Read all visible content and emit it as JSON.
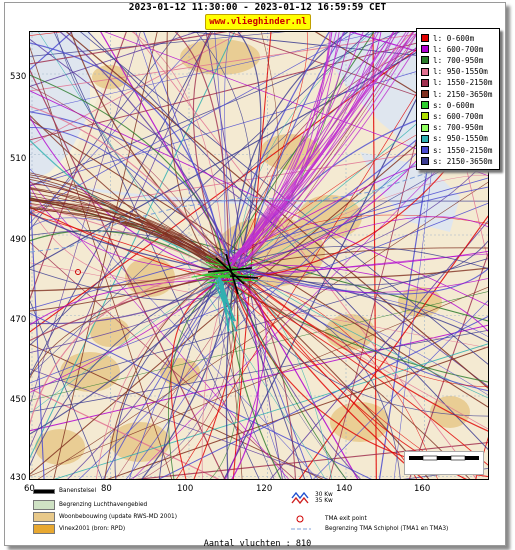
{
  "title": "2023-01-12 11:30:00 - 2023-01-12 16:59:59 CET",
  "website": "www.vlieghinder.nl",
  "axes": {
    "y_ticks": [
      "530",
      "510",
      "490",
      "470",
      "450",
      "430"
    ],
    "x_ticks": [
      "60",
      "80",
      "100",
      "120",
      "140",
      "160"
    ]
  },
  "legend": [
    {
      "label": "l: 0-600m",
      "color": "#e00000"
    },
    {
      "label": "l: 600-700m",
      "color": "#b000d0"
    },
    {
      "label": "l: 700-950m",
      "color": "#2a7a2a"
    },
    {
      "label": "l: 950-1550m",
      "color": "#e07090"
    },
    {
      "label": "l: 1550-2150m",
      "color": "#a03050"
    },
    {
      "label": "l: 2150-3650m",
      "color": "#803020"
    },
    {
      "label": "s: 0-600m",
      "color": "#30d030"
    },
    {
      "label": "s: 600-700m",
      "color": "#b0e000"
    },
    {
      "label": "s: 700-950m",
      "color": "#90ff60"
    },
    {
      "label": "s: 950-1550m",
      "color": "#30b0b0"
    },
    {
      "label": "s: 1550-2150m",
      "color": "#4a4ad0"
    },
    {
      "label": "s: 2150-3650m",
      "color": "#3a3a90"
    }
  ],
  "scale": {
    "left": "30 Kw",
    "right": "35 Kw"
  },
  "bottom_legend": {
    "runway": "Banenstelsel",
    "airport_limit": "Begrenzing Luchthavengebied",
    "housing": "Woonbebouwing (update RWS-MD 2001)",
    "vinex": "Vinex2001 (bron: RPD)",
    "wind_top": "30 Kw",
    "wind_bottom": "35 Kw",
    "tma_exit": "TMA exit point",
    "tma_limit": "Begrenzing TMA Schiphol  (TMA1 en TMA3)"
  },
  "flights_count": "Aantal vluchten : 810",
  "colors": {
    "sea": "#dfe6ef",
    "land": "#f4ead2",
    "urban": "#e8c98a",
    "grass": "#cfe2c4"
  }
}
